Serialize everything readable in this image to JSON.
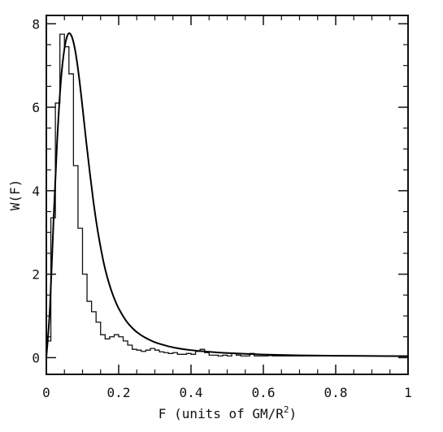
{
  "chart_data": {
    "type": "bar",
    "title": "",
    "xlabel": "F (units of GM/R",
    "xlabel_sup": "2",
    "xlabel_close": ")",
    "ylabel": "W(F)",
    "xlim": [
      0,
      1
    ],
    "ylim": [
      -0.4,
      8.2
    ],
    "xticks": [
      0,
      0.2,
      0.4,
      0.6,
      0.8,
      1
    ],
    "xtick_labels": [
      "0",
      "0.2",
      "0.4",
      "0.6",
      "0.8",
      "1"
    ],
    "yticks": [
      0,
      2,
      4,
      6,
      8
    ],
    "ytick_labels": [
      "0",
      "2",
      "4",
      "6",
      "8"
    ],
    "grid": false,
    "series": [
      {
        "style": "histogram-step",
        "bin_width": 0.0125,
        "bin_start": 0,
        "values": [
          0.4,
          3.35,
          6.1,
          7.75,
          7.45,
          6.8,
          4.6,
          3.1,
          2.0,
          1.35,
          1.1,
          0.85,
          0.55,
          0.45,
          0.5,
          0.55,
          0.5,
          0.4,
          0.3,
          0.2,
          0.18,
          0.15,
          0.18,
          0.22,
          0.18,
          0.14,
          0.12,
          0.1,
          0.12,
          0.08,
          0.08,
          0.1,
          0.08,
          0.15,
          0.2,
          0.12,
          0.06,
          0.06,
          0.04,
          0.06,
          0.04,
          0.1,
          0.06,
          0.04,
          0.04,
          0.1,
          0.04,
          0.04,
          0.04,
          0.05,
          0.04,
          0.04,
          0.04,
          0.04,
          0.04,
          0.04,
          0.04,
          0.04,
          0.04,
          0.04,
          0.04,
          0.04,
          0.04,
          0.04,
          0.04,
          0.04,
          0.04,
          0.04,
          0.04,
          0.04,
          0.04,
          0.04,
          0.04,
          0.04,
          0.04,
          0.04,
          0.04,
          0.04,
          0.04,
          0.04
        ]
      },
      {
        "style": "smooth-curve",
        "x": [
          0.0,
          0.01,
          0.02,
          0.03,
          0.04,
          0.05,
          0.06,
          0.07,
          0.08,
          0.09,
          0.1,
          0.11,
          0.12,
          0.13,
          0.14,
          0.15,
          0.16,
          0.17,
          0.18,
          0.19,
          0.2,
          0.22,
          0.24,
          0.26,
          0.28,
          0.3,
          0.33,
          0.36,
          0.4,
          0.45,
          0.5,
          0.6,
          0.7,
          0.8,
          0.9,
          1.0
        ],
        "y": [
          0.0,
          1.2,
          3.3,
          5.2,
          6.6,
          7.4,
          7.75,
          7.7,
          7.35,
          6.75,
          6.0,
          5.2,
          4.45,
          3.75,
          3.15,
          2.65,
          2.22,
          1.88,
          1.6,
          1.37,
          1.18,
          0.89,
          0.69,
          0.55,
          0.45,
          0.37,
          0.29,
          0.23,
          0.18,
          0.14,
          0.11,
          0.075,
          0.055,
          0.045,
          0.04,
          0.035
        ]
      }
    ]
  }
}
